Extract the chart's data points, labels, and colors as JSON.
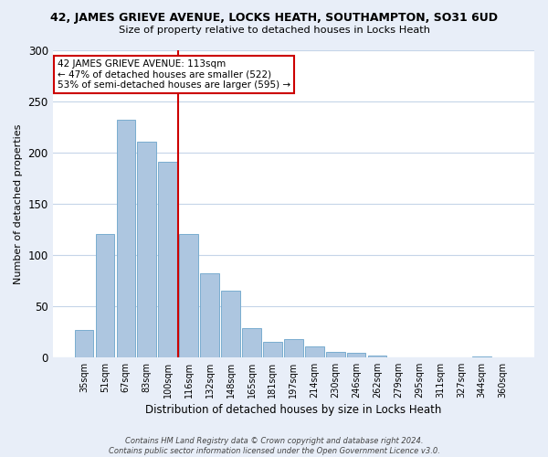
{
  "title": "42, JAMES GRIEVE AVENUE, LOCKS HEATH, SOUTHAMPTON, SO31 6UD",
  "subtitle": "Size of property relative to detached houses in Locks Heath",
  "xlabel": "Distribution of detached houses by size in Locks Heath",
  "ylabel": "Number of detached properties",
  "bar_labels": [
    "35sqm",
    "51sqm",
    "67sqm",
    "83sqm",
    "100sqm",
    "116sqm",
    "132sqm",
    "148sqm",
    "165sqm",
    "181sqm",
    "197sqm",
    "214sqm",
    "230sqm",
    "246sqm",
    "262sqm",
    "279sqm",
    "295sqm",
    "311sqm",
    "327sqm",
    "344sqm",
    "360sqm"
  ],
  "bar_heights": [
    27,
    120,
    232,
    211,
    191,
    120,
    82,
    65,
    28,
    15,
    18,
    11,
    5,
    4,
    2,
    0,
    0,
    0,
    0,
    1,
    0
  ],
  "bar_color": "#adc6e0",
  "bar_edgecolor": "#7aadd0",
  "ylim": [
    0,
    300
  ],
  "yticks": [
    0,
    50,
    100,
    150,
    200,
    250,
    300
  ],
  "vline_x_idx": 4.5,
  "vline_color": "#cc0000",
  "annotation_title": "42 JAMES GRIEVE AVENUE: 113sqm",
  "annotation_line1": "← 47% of detached houses are smaller (522)",
  "annotation_line2": "53% of semi-detached houses are larger (595) →",
  "annotation_box_color": "#ffffff",
  "annotation_box_edge": "#cc0000",
  "footer_line1": "Contains HM Land Registry data © Crown copyright and database right 2024.",
  "footer_line2": "Contains public sector information licensed under the Open Government Licence v3.0.",
  "background_color": "#e8eef8",
  "plot_background_color": "#ffffff",
  "grid_color": "#c5d5e8"
}
